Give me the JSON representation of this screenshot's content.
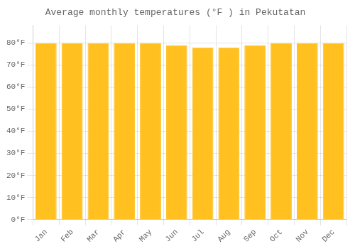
{
  "chart_data": {
    "type": "bar",
    "title": "Average monthly temperatures (°F ) in Pekutatan",
    "categories": [
      "Jan",
      "Feb",
      "Mar",
      "Apr",
      "May",
      "Jun",
      "Jul",
      "Aug",
      "Sep",
      "Oct",
      "Nov",
      "Dec"
    ],
    "values": [
      80,
      80,
      80,
      80,
      80,
      79,
      78,
      78,
      79,
      80,
      80,
      80
    ],
    "color": "#FFC020",
    "ylim": [
      0,
      88
    ],
    "yticks": [
      {
        "value": 0,
        "label": "0°F"
      },
      {
        "value": 10,
        "label": "10°F"
      },
      {
        "value": 20,
        "label": "20°F"
      },
      {
        "value": 30,
        "label": "30°F"
      },
      {
        "value": 40,
        "label": "40°F"
      },
      {
        "value": 50,
        "label": "50°F"
      },
      {
        "value": 60,
        "label": "60°F"
      },
      {
        "value": 70,
        "label": "70°F"
      },
      {
        "value": 80,
        "label": "80°F"
      }
    ],
    "grid": true
  }
}
